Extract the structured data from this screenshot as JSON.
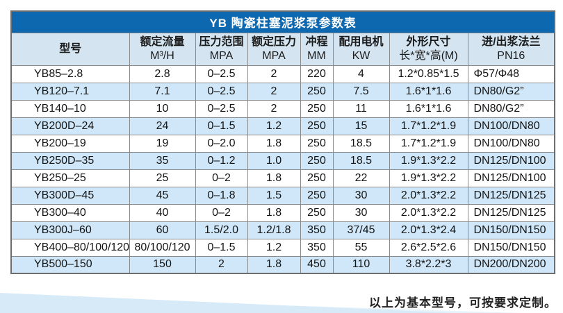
{
  "table": {
    "title": "YB 陶瓷柱塞泥浆泵参数表",
    "columns": [
      {
        "title": "型号",
        "subtitle": ""
      },
      {
        "title": "额定流量",
        "subtitle": "M³/H"
      },
      {
        "title": "压力范围",
        "subtitle": "MPA"
      },
      {
        "title": "额定压力",
        "subtitle": "MPA"
      },
      {
        "title": "冲程",
        "subtitle": "MM"
      },
      {
        "title": "配用电机",
        "subtitle": "KW"
      },
      {
        "title": "外形尺寸",
        "subtitle": "长*宽*高(M)"
      },
      {
        "title": "进/出浆法兰",
        "subtitle": "PN16"
      }
    ],
    "column_keys": [
      "model",
      "rated-flow",
      "pressure-range",
      "rated-pressure",
      "stroke",
      "motor-power",
      "dimensions",
      "flange"
    ],
    "rows": [
      [
        "YB85–2.8",
        "2.8",
        "0–2.5",
        "2",
        "220",
        "4",
        "1.2*0.85*1.5",
        "Φ57/Φ48"
      ],
      [
        "YB120–7.1",
        "7.1",
        "0–2.5",
        "2",
        "250",
        "7.5",
        "1.6*1*1.6",
        "DN80/G2”"
      ],
      [
        "YB140–10",
        "10",
        "0–2.5",
        "2",
        "250",
        "11",
        "1.6*1*1.6",
        "DN80/G2”"
      ],
      [
        "YB200D–24",
        "24",
        "0–1.5",
        "1.2",
        "250",
        "15",
        "1.7*1.2*1.9",
        "DN100/DN80"
      ],
      [
        "YB200–19",
        "19",
        "0–2.0",
        "1.8",
        "250",
        "18.5",
        "1.7*1.2*1.9",
        "DN100/DN80"
      ],
      [
        "YB250D–35",
        "35",
        "0–1.2",
        "1.0",
        "250",
        "18.5",
        "1.9*1.3*2.2",
        "DN125/DN100"
      ],
      [
        "YB250–25",
        "25",
        "0–2",
        "1.8",
        "250",
        "22",
        "1.9*1.3*2.2",
        "DN125/DN100"
      ],
      [
        "YB300D–45",
        "45",
        "0–1.8",
        "1.5",
        "250",
        "30",
        "2.0*1.3*2.2",
        "DN125/DN125"
      ],
      [
        "YB300–40",
        "40",
        "0–2",
        "1.8",
        "250",
        "30",
        "2.0*1.3*2.2",
        "DN125/DN125"
      ],
      [
        "YB300J–60",
        "60",
        "1.5/2.0",
        "1.2/1.8",
        "350",
        "37/45",
        "2.0*1.3*2.4",
        "DN150/DN150"
      ],
      [
        "YB400–80/100/120",
        "80/100/120",
        "0–1.5",
        "1.2",
        "350",
        "55",
        "2.6*2.5*2.6",
        "DN150/DN150"
      ],
      [
        "YB500–150",
        "150",
        "2",
        "1.8",
        "450",
        "110",
        "3.8*2.2*3",
        "DN200/DN200"
      ]
    ]
  },
  "footer": {
    "note": "以上为基本型号，可按要求定制。"
  },
  "colors": {
    "title_bar": "#0d68b0",
    "header_row": "#d4e5f1",
    "row_alt": "#cfe7f8",
    "grid_line": "#8a8a8a",
    "wedge_main": "#d6eaf8",
    "wedge_light": "#e7f3fb"
  }
}
